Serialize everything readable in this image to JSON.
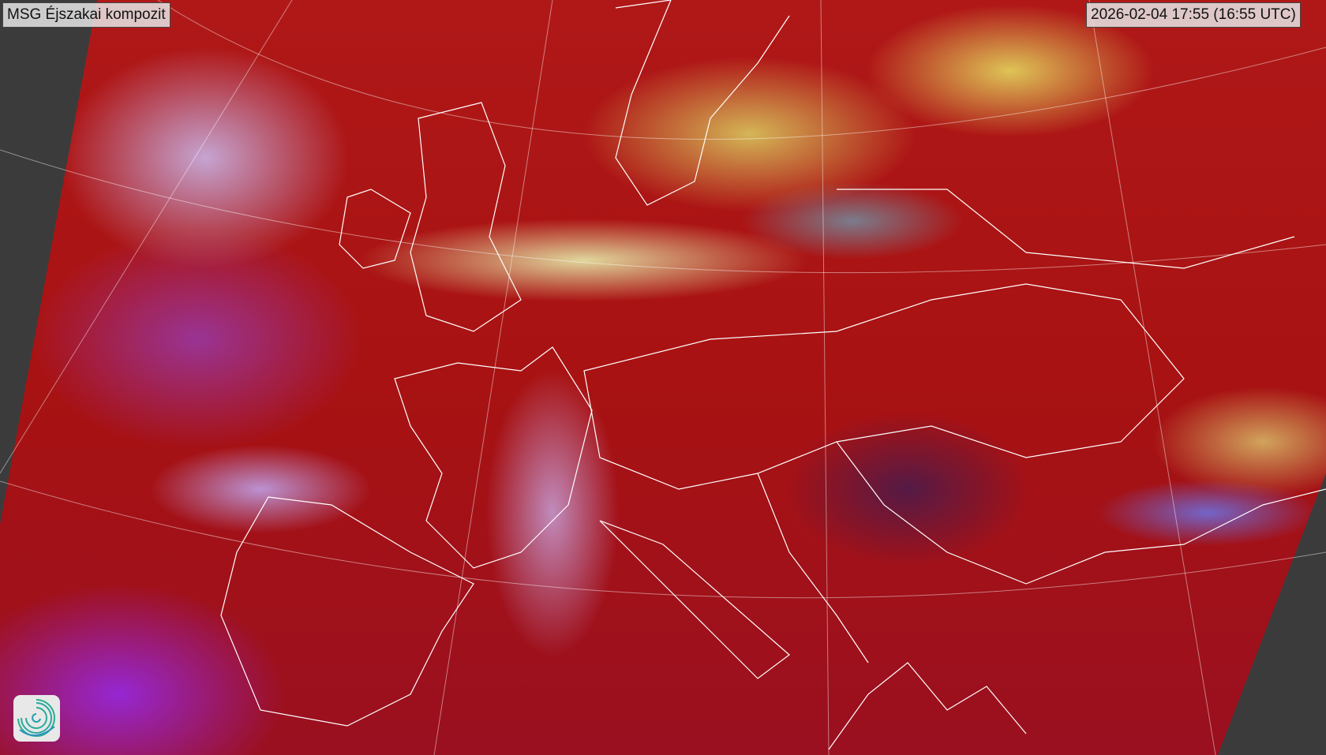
{
  "map": {
    "title": "MSG Éjszakai kompozit",
    "timestamp": "2026-02-04 17:55 (16:55 UTC)",
    "logo_icon": "spiral-logo-icon",
    "colors": {
      "background": "#3b3b3b",
      "dominant": "#b01818",
      "cloud_high": "#c8b4e6",
      "cloud_low": "#e6ebaa",
      "borders": "#ffffff"
    }
  }
}
